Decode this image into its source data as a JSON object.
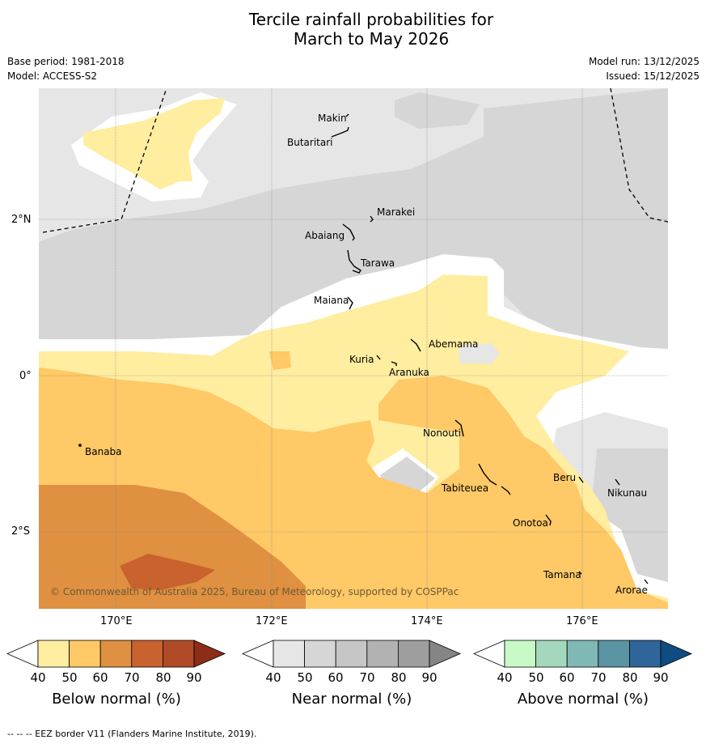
{
  "title_line1": "Tercile rainfall probabilities for",
  "title_line2": "March to May 2026",
  "base_period": "Base period: 1981-2018",
  "model": "Model: ACCESS-S2",
  "model_run": "Model run: 13/12/2025",
  "issued": "Issued: 15/12/2025",
  "axes": {
    "lat_labels": [
      "2°N",
      "0°",
      "2°S"
    ],
    "lon_labels": [
      "170°E",
      "172°E",
      "174°E",
      "176°E"
    ]
  },
  "places": [
    "Makin",
    "Butaritari",
    "Marakei",
    "Abaiang",
    "Tarawa",
    "Maiana",
    "Abemama",
    "Kuria",
    "Aranuka",
    "Nonouti",
    "Banaba",
    "Tabiteuea",
    "Beru",
    "Nikunau",
    "Onotoa",
    "Tamana",
    "Arorae"
  ],
  "copyright": "© Commonwealth of Australia 2025, Bureau of Meteorology, supported by COSPPac",
  "colorbars": [
    {
      "title": "Below normal (%)",
      "ticks": [
        "40",
        "50",
        "60",
        "70",
        "80",
        "90"
      ],
      "colors": [
        "#ffffff",
        "#ffeda0",
        "#fec966",
        "#df9040",
        "#c9622f",
        "#b04a26",
        "#8c2d17"
      ]
    },
    {
      "title": "Near normal (%)",
      "ticks": [
        "40",
        "50",
        "60",
        "70",
        "80",
        "90"
      ],
      "colors": [
        "#ffffff",
        "#e6e6e6",
        "#d6d6d6",
        "#c6c6c6",
        "#b2b2b2",
        "#9e9e9e",
        "#858585"
      ]
    },
    {
      "title": "Above normal (%)",
      "ticks": [
        "40",
        "50",
        "60",
        "70",
        "80",
        "90"
      ],
      "colors": [
        "#ffffff",
        "#c8fac8",
        "#a4d8bd",
        "#7fb8b4",
        "#5b94a3",
        "#2f6599",
        "#0f4c81"
      ]
    }
  ],
  "footnote": "-- -- -- EEZ border V11 (Flanders Marine Institute, 2019)."
}
